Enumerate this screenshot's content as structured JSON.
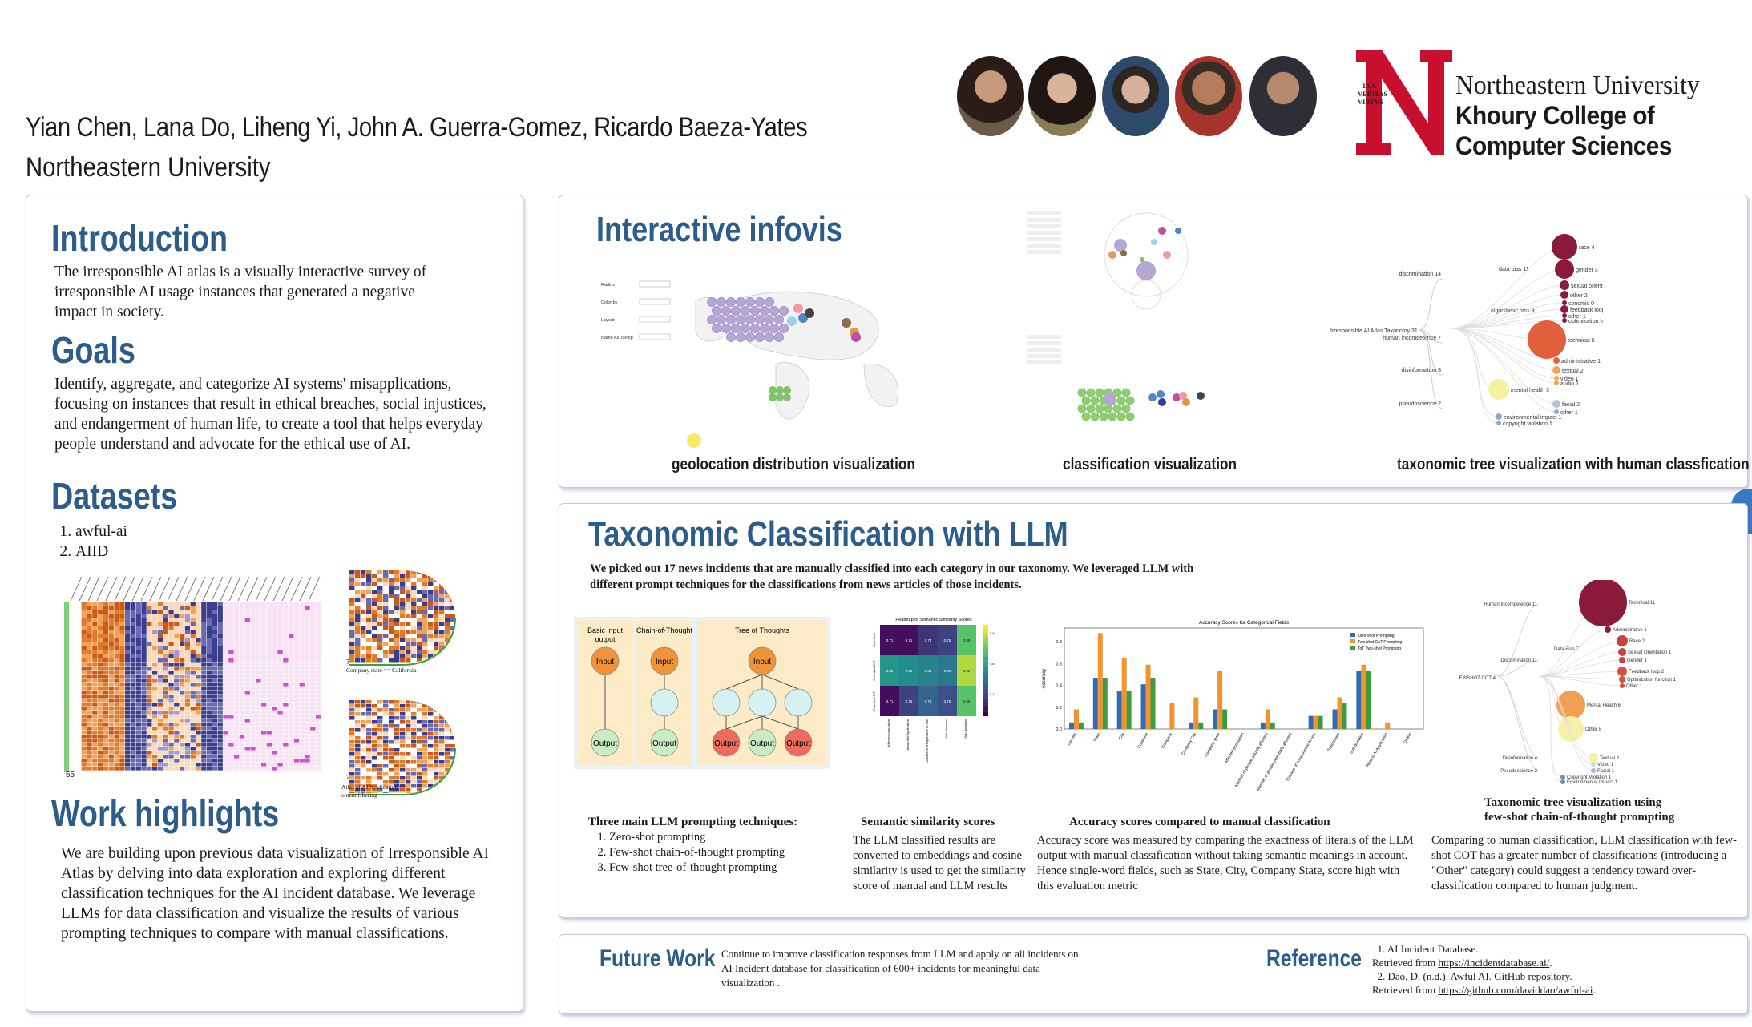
{
  "header": {
    "authors": "Yian Chen, Lana Do, Liheng Yi, John A. Guerra-Gomez, Ricardo Baeza-Yates",
    "affiliation": "Northeastern University",
    "logo": {
      "seal_text": [
        "LVX",
        "VERITAS",
        "VIRTVS"
      ],
      "line1": "Northeastern University",
      "line2": "Khoury College of",
      "line3": "Computer Sciences",
      "brand_color": "#c8102e"
    }
  },
  "colors": {
    "accent": "#2b5c8c",
    "panel_border": "#b9cbe0",
    "brand_red": "#c8102e"
  },
  "intro": {
    "title": "Introduction",
    "text": "The irresponsible AI atlas is a visually interactive survey of irresponsible AI usage instances that generated a negative impact in society."
  },
  "goals": {
    "title": "Goals",
    "text": "Identify, aggregate, and categorize AI systems' misapplications, focusing on instances that result in ethical breaches, social injustices, and endangerment of human life, to create a tool that helps everyday people understand and advocate for the ethical use of AI."
  },
  "datasets": {
    "title": "Datasets",
    "items": [
      "awful-ai",
      "AIID"
    ],
    "fig_labels": {
      "count_a": "55",
      "count_b": "7",
      "count_c": "2",
      "filter_a": "Company state == California",
      "filter_b": "Atlas of AI Application ==",
      "filter_b2": "ontent filtering"
    }
  },
  "work": {
    "title": "Work highlights",
    "text": "We are building upon previous data visualization of Irresponsible AI Atlas by delving into data exploration and exploring different classification techniques for the AI incident database. We leverage LLMs for data classification and visualize the results of various prompting techniques to compare with manual classifications."
  },
  "infovis": {
    "title": "Interactive infovis",
    "captions": [
      "geolocation distribution visualization",
      "classification visualization",
      "taxonomic tree visualization with human classfication"
    ],
    "tree_labels": {
      "root": "Irresponsible AI Atlas Taxonomy 31",
      "discrimination": "discrimination 14",
      "data_bias": "data bias 11",
      "race": "race 4",
      "gender": "gender 3",
      "sexual_orientation": "sexual orientation 2",
      "other": "other 2",
      "economic": "conomic 0",
      "feedback_loop": "feedback loop 2",
      "other2": "other 1",
      "optimization": "optimization function 0",
      "algorithmic_bias": "algorithmic bias 3",
      "human_incompetence": "human incompetence 7",
      "technical": "technical 6",
      "administrative": "administrative 1",
      "textual": "textual 2",
      "video": "video 1",
      "audio": "audio 1",
      "disinformation": "disinformation 3",
      "mental_health": "mental health 3",
      "pseudoscience": "pseudoscience 2",
      "facial": "facial 2",
      "other3": "other 1",
      "environmental": "environmental impact 1",
      "copyright": "copyright violation 1"
    },
    "geo_controls": [
      "Radius",
      "Color by",
      "Layout",
      "Name As Tooltip"
    ]
  },
  "taxonomic": {
    "title": "Taxonomic Classification with LLM",
    "intro": "We picked out 17 news incidents that are manually classified into each category in our taxonomy. We leveraged LLM with different prompt techniques for the classifications from news articles of those incidents.",
    "prompting": {
      "columns": [
        "Basic input output",
        "Chain-of-Thought",
        "Tree of Thoughts"
      ],
      "node_input": "Input",
      "node_output": "Output",
      "caption": "Three main LLM prompting techniques:",
      "items": [
        "Zero-shot prompting",
        "Few-shot chain-of-thought prompting",
        "Few-shot tree-of-thought prompting"
      ]
    },
    "heatmap": {
      "chart_title": "Heatmap of Semantic Similarity Scores",
      "caption": "Semantic similarity scores",
      "text": "The LLM classified results are converted to embeddings and cosine similarity is used to get the similarity score of manual and LLM results"
    },
    "accuracy": {
      "caption": "Accuracy scores compared to manual classification",
      "text": "Accuracy score was measured by comparing the exactness of literals of the LLM output with manual classification without taking semantic meanings in account. Hence single-word fields, such as State, City, Company State, score high with this evaluation metric"
    },
    "tree": {
      "caption1": "Taxonomic tree visualization using",
      "caption2": "few-shot chain-of-thought prompting",
      "text": "Comparing to human classification, LLM classification with few-shot COT has a greater number of classifications (introducing a \"Other\" category) could suggest a tendency toward over-classification compared to human judgment.",
      "labels": {
        "root": "FEWSHOT COT 4",
        "human_incompetence": "Human Incompetence 11",
        "technical": "Technical 11",
        "administrative": "Administrative 1",
        "discrimination": "Discrimination 11",
        "data_bias": "Data Bias 7",
        "race": "Race 2",
        "sexual": "Sexual Orientation 1",
        "gender": "Gender 1",
        "algorithmic": "Algorithmic Bias 4",
        "feedback": "Feedback loop 2",
        "optimization": "Optimization function 1",
        "other1": "Other 1",
        "mental": "Mental Health 6",
        "other": "Other 5",
        "disinformation": "Disinformation 4",
        "textual": "Textual 3",
        "video": "Video 1",
        "facial": "Facial 1",
        "pseudoscience": "Pseudoscience 2",
        "copyright": "Copyright Violation 1",
        "environmental": "Environmental Impact 1"
      }
    }
  },
  "future": {
    "title": "Future Work",
    "text": "Continue to improve classification responses from LLM and apply on all incidents on AI Incident database for classification of 600+ incidents for meaningful data visualization ."
  },
  "reference": {
    "title": "Reference",
    "items": [
      {
        "n": "1.",
        "text": "AI Incident Database.",
        "prefix": "Retrieved from ",
        "link": "https://incidentdatabase.ai/",
        "suffix": "."
      },
      {
        "n": "2.",
        "text": "Dao, D. (n.d.). Awful AI. GitHub repository.",
        "prefix": "Retrieved from ",
        "link": "https://github.com/daviddao/awful-ai",
        "suffix": "."
      }
    ]
  },
  "chart_data": [
    {
      "type": "heatmap",
      "title": "Heatmap of Semantic Similarity Scores",
      "x": [
        "Affected population",
        "Atlas of AI Application",
        "Classes of irresponsible AI use",
        "Sub-domains",
        "Sub-domains"
      ],
      "y": [
        "Zero-shot",
        "Few-shot CoT",
        "Few-shot ToT"
      ],
      "values": [
        [
          0.71,
          0.71,
          0.74,
          0.75,
          0.88
        ],
        [
          0.83,
          0.82,
          0.81,
          0.8,
          0.92
        ],
        [
          0.71,
          0.75,
          0.78,
          0.76,
          0.88
        ]
      ],
      "colorscale": "viridis",
      "range": [
        0.7,
        0.95
      ]
    },
    {
      "type": "bar",
      "title": "Accuracy Scores for Categorical Fields",
      "ylabel": "Accuracy",
      "ylim": [
        0,
        1
      ],
      "categories": [
        "Country",
        "State",
        "City",
        "Continent",
        "Company",
        "Company City",
        "Company state",
        "Affected population",
        "Number of people actually affected",
        "Number of people potentially affected",
        "Classes of irresponsible AI use",
        "Subclasses",
        "Sub-domains",
        "Atlas of AI Application",
        "Online"
      ],
      "series": [
        {
          "name": "Zero-shot Prompting",
          "color": "#2f6cb3",
          "values": [
            0.06,
            0.47,
            0.35,
            0.41,
            0,
            0.06,
            0.18,
            0,
            0.06,
            0,
            0.12,
            0.18,
            0.53,
            0,
            0
          ]
        },
        {
          "name": "Two-shot CoT Prompting",
          "color": "#f39230",
          "values": [
            0.18,
            0.88,
            0.65,
            0.59,
            0.24,
            0.29,
            0.53,
            0,
            0.18,
            0,
            0.12,
            0.29,
            0.59,
            0.06,
            0
          ]
        },
        {
          "name": "ToT Two-shot Prompting",
          "color": "#3d9c3d",
          "values": [
            0.06,
            0.47,
            0.35,
            0.47,
            0,
            0.06,
            0.18,
            0,
            0.06,
            0,
            0.12,
            0.24,
            0.53,
            0,
            0
          ]
        }
      ],
      "yticks": [
        "0.0",
        "0.2",
        "0.4",
        "0.6",
        "0.8"
      ]
    }
  ]
}
